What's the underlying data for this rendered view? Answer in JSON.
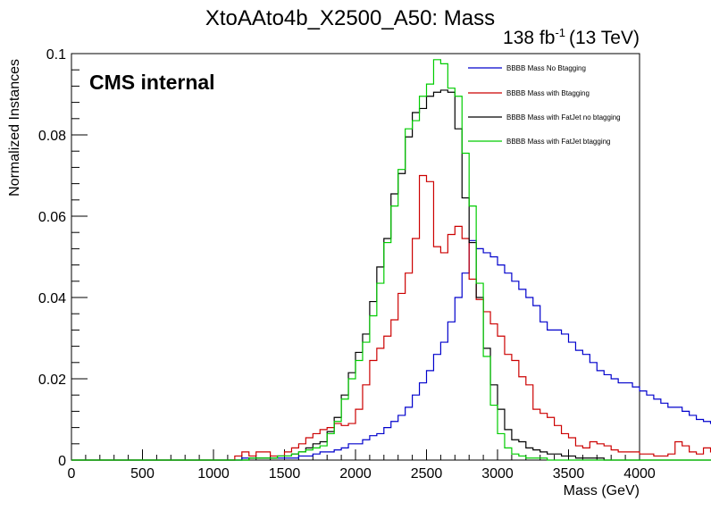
{
  "chart_data": {
    "type": "line",
    "title": "XtoAAto4b_X2500_A50: Mass",
    "lumi": {
      "value": "138 fb",
      "sup": "-1",
      "energy": "(13 TeV)"
    },
    "label": "CMS internal",
    "xlabel": "Mass (GeV)",
    "ylabel": "Normalized Instances",
    "xlim": [
      0,
      4000
    ],
    "ylim": [
      0,
      0.1
    ],
    "xticks": [
      "0",
      "500",
      "1000",
      "1500",
      "2000",
      "2500",
      "3000",
      "3500",
      "4000"
    ],
    "yticks": [
      "0",
      "0.02",
      "0.04",
      "0.06",
      "0.08",
      "0.1"
    ],
    "binning": {
      "start": 0,
      "width": 50
    },
    "legend_position": "top-right",
    "series": [
      {
        "name": "BBBB Mass No Btagging",
        "color": "#0000cc",
        "values": [
          0,
          0,
          0,
          0,
          0,
          0,
          0,
          0,
          0,
          0,
          0,
          0,
          0,
          0,
          0,
          0,
          0,
          0,
          0,
          0,
          0,
          0,
          0,
          0,
          0.0005,
          0.0005,
          0.0005,
          0.0005,
          0.0005,
          0.0005,
          0.0005,
          0.0005,
          0.001,
          0.001,
          0.0015,
          0.002,
          0.002,
          0.0025,
          0.003,
          0.004,
          0.004,
          0.005,
          0.006,
          0.0065,
          0.008,
          0.0095,
          0.011,
          0.013,
          0.016,
          0.019,
          0.022,
          0.026,
          0.029,
          0.034,
          0.04,
          0.046,
          0.054,
          0.052,
          0.051,
          0.05,
          0.048,
          0.046,
          0.044,
          0.042,
          0.04,
          0.038,
          0.034,
          0.032,
          0.032,
          0.031,
          0.029,
          0.027,
          0.026,
          0.024,
          0.022,
          0.021,
          0.02,
          0.019,
          0.019,
          0.018,
          0.017,
          0.016,
          0.015,
          0.014,
          0.013,
          0.013,
          0.012,
          0.011,
          0.01,
          0.0095,
          0.009,
          0.0085,
          0,
          0,
          0,
          0,
          0,
          0,
          0,
          0
        ]
      },
      {
        "name": "BBBB Mass with Btagging",
        "color": "#cc0000",
        "values": [
          0,
          0,
          0,
          0,
          0,
          0,
          0,
          0,
          0,
          0,
          0,
          0,
          0,
          0,
          0,
          0,
          0,
          0,
          0,
          0,
          0,
          0,
          0,
          0.001,
          0.002,
          0.001,
          0.002,
          0.002,
          0.001,
          0.001,
          0.002,
          0.003,
          0.004,
          0.0055,
          0.0065,
          0.0075,
          0.008,
          0.009,
          0.0085,
          0.009,
          0.0125,
          0.0185,
          0.0245,
          0.0275,
          0.0305,
          0.0345,
          0.041,
          0.046,
          0.0545,
          0.07,
          0.0685,
          0.0525,
          0.051,
          0.0555,
          0.0575,
          0.0545,
          0.0445,
          0.0395,
          0.0365,
          0.0335,
          0.0305,
          0.026,
          0.0245,
          0.0205,
          0.0185,
          0.0125,
          0.0115,
          0.0105,
          0.0085,
          0.0065,
          0.0055,
          0.0035,
          0.003,
          0.0045,
          0.004,
          0.0035,
          0.0025,
          0.002,
          0.002,
          0.002,
          0.0015,
          0.0015,
          0.001,
          0.001,
          0.0015,
          0.0045,
          0.0035,
          0.002,
          0.0015,
          0.003,
          0.002,
          0.001,
          0,
          0,
          0,
          0,
          0,
          0,
          0,
          0
        ]
      },
      {
        "name": "BBBB Mass with FatJet no btagging",
        "color": "#000000",
        "values": [
          0,
          0,
          0,
          0,
          0,
          0,
          0,
          0,
          0,
          0,
          0,
          0,
          0,
          0,
          0,
          0,
          0,
          0,
          0,
          0,
          0,
          0,
          0,
          0,
          0,
          0.0005,
          0.0005,
          0.0005,
          0.0005,
          0.001,
          0.001,
          0.0015,
          0.002,
          0.003,
          0.004,
          0.0045,
          0.007,
          0.0105,
          0.016,
          0.0215,
          0.0265,
          0.031,
          0.039,
          0.0475,
          0.0545,
          0.0655,
          0.0705,
          0.0795,
          0.0855,
          0.0865,
          0.0895,
          0.0905,
          0.091,
          0.0905,
          0.0815,
          0.0645,
          0.0535,
          0.04,
          0.0275,
          0.0185,
          0.0125,
          0.0075,
          0.005,
          0.0045,
          0.003,
          0.0025,
          0.002,
          0.0015,
          0.0015,
          0.001,
          0.001,
          0.0005,
          0.0005,
          0.0005,
          0.0005,
          0,
          0,
          0,
          0,
          0,
          0,
          0,
          0,
          0,
          0,
          0,
          0,
          0,
          0,
          0,
          0,
          0,
          0,
          0,
          0,
          0,
          0,
          0,
          0,
          0
        ]
      },
      {
        "name": "BBBB Mass with FatJet btagging",
        "color": "#00cc00",
        "values": [
          0,
          0,
          0,
          0,
          0,
          0,
          0,
          0,
          0,
          0,
          0,
          0,
          0,
          0,
          0,
          0,
          0,
          0,
          0,
          0,
          0,
          0,
          0,
          0,
          0,
          0.0005,
          0.0005,
          0.0005,
          0.0005,
          0.001,
          0.001,
          0.0015,
          0.002,
          0.0025,
          0.003,
          0.0035,
          0.0065,
          0.0095,
          0.015,
          0.02,
          0.0245,
          0.029,
          0.0355,
          0.0435,
          0.0535,
          0.0625,
          0.0715,
          0.0815,
          0.0835,
          0.0895,
          0.0925,
          0.0985,
          0.0975,
          0.0915,
          0.0895,
          0.0755,
          0.0625,
          0.0435,
          0.0255,
          0.0135,
          0.0065,
          0.003,
          0.0015,
          0.001,
          0.0005,
          0.0005,
          0.0005,
          0,
          0,
          0,
          0,
          0,
          0,
          0,
          0,
          0,
          0,
          0,
          0,
          0,
          0,
          0,
          0,
          0,
          0,
          0,
          0,
          0,
          0,
          0,
          0,
          0,
          0,
          0,
          0,
          0,
          0,
          0,
          0,
          0,
          0,
          0,
          0
        ]
      }
    ]
  }
}
